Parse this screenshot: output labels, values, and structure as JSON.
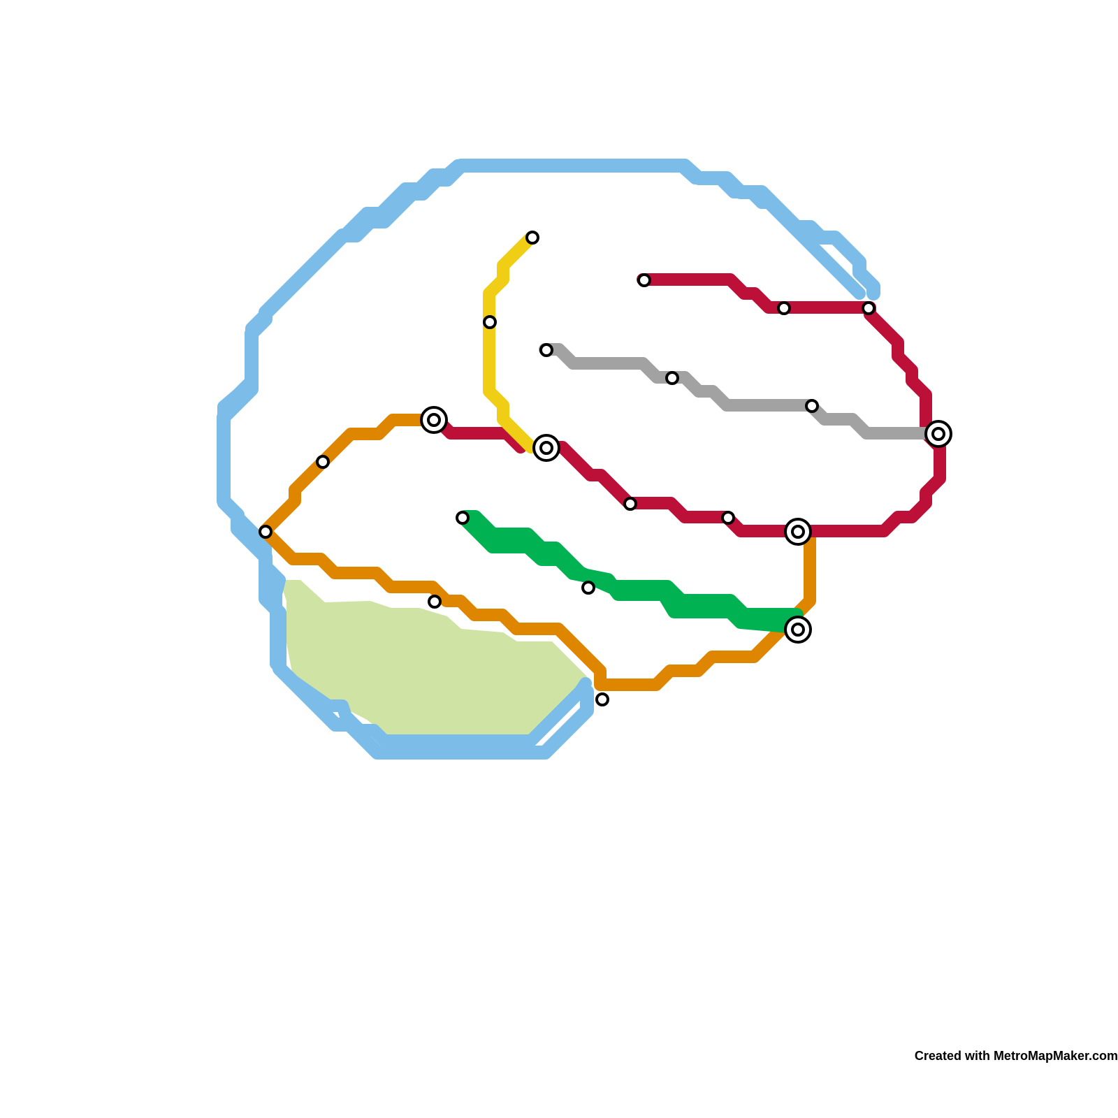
{
  "map": {
    "credit": "Created with MetroMapMaker.com",
    "colors": {
      "background": "#ffffff",
      "light_blue": "#7bbde8",
      "green_area": "#cfe3a5",
      "orange": "#df8600",
      "red": "#bd1038",
      "yellow": "#f0ce15",
      "gray": "#a2a2a2",
      "green": "#00b251",
      "station_fill": "#ffffff",
      "station_stroke": "#000000"
    },
    "lines": [
      {
        "id": "light-blue",
        "color": "#7bbde8"
      },
      {
        "id": "orange",
        "color": "#df8600"
      },
      {
        "id": "red",
        "color": "#bd1038"
      },
      {
        "id": "yellow",
        "color": "#f0ce15"
      },
      {
        "id": "gray",
        "color": "#a2a2a2"
      },
      {
        "id": "green",
        "color": "#00b251"
      }
    ],
    "stations": {
      "simple_count": 15,
      "interchange_count": 6
    }
  }
}
